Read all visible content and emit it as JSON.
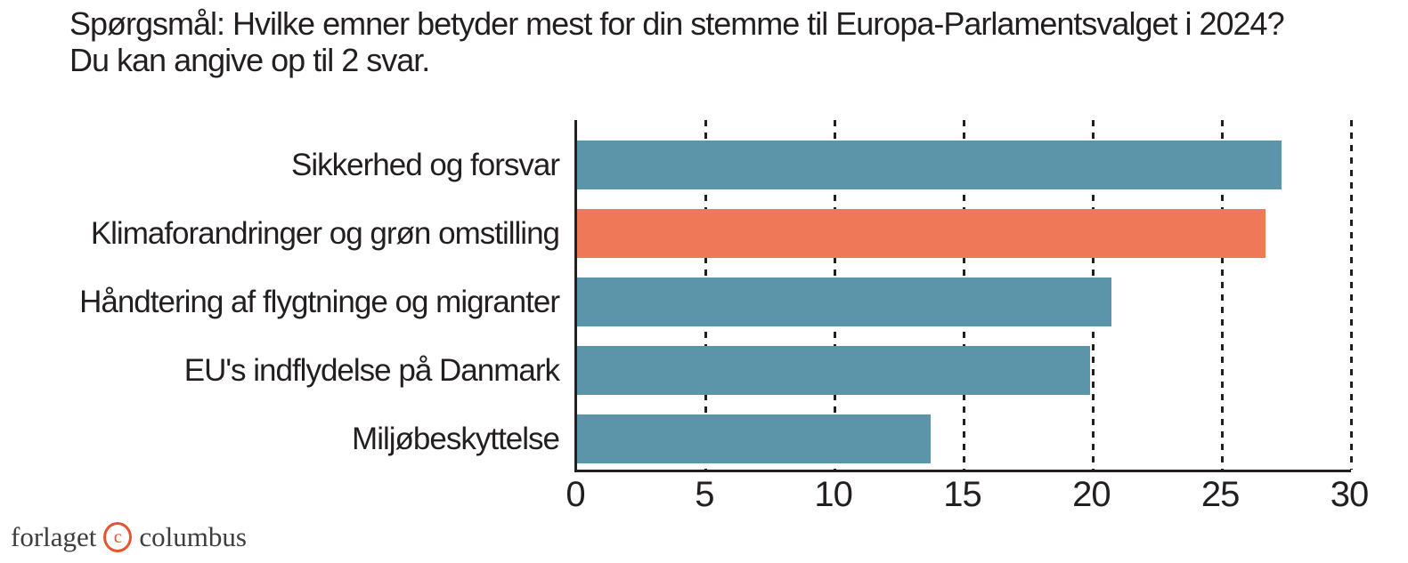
{
  "header": {
    "line1": "Spørgsmål: Hvilke emner betyder mest for din stemme til Europa-Parlamentsvalget i 2024?",
    "line2": "Du kan angive op til 2 svar."
  },
  "chart_data": {
    "type": "bar",
    "orientation": "horizontal",
    "title": "Spørgsmål: Hvilke emner betyder mest for din stemme til Europa-Parlamentsvalget i 2024? Du kan angive op til 2 svar.",
    "categories": [
      "Sikkerhed og forsvar",
      "Klimaforandringer og grøn omstilling",
      "Håndtering af flygtninge og migranter",
      "EU's indflydelse på Danmark",
      "Miljøbeskyttelse"
    ],
    "values": [
      27.3,
      26.7,
      20.7,
      19.9,
      13.7
    ],
    "highlight_index": 1,
    "xlabel": "",
    "ylabel": "",
    "xlim": [
      0,
      30
    ],
    "x_ticks": [
      0,
      5,
      10,
      15,
      20,
      25,
      30
    ],
    "grid": "dashed vertical gridlines at each x tick",
    "legend": "none"
  },
  "colors": {
    "bar_blue": "#5c95aa",
    "bar_orange": "#ee7857",
    "axis": "#231f20",
    "text": "#231f20",
    "logo_orange": "#e6552f",
    "logo_text": "#3d3d3d"
  },
  "footer": {
    "brand_left": "forlaget",
    "brand_symbol": "c",
    "brand_right": "columbus"
  }
}
